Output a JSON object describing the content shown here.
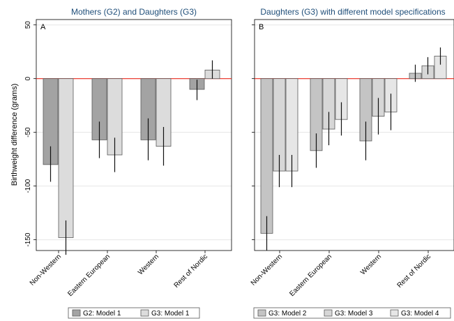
{
  "y_axis_label": "Birthweight difference (grams)",
  "chart_data": [
    {
      "type": "bar",
      "panel": "A",
      "title": "Mothers (G2) and Daughters (G3)",
      "categories": [
        "Non-Western",
        "Eastern European",
        "Western",
        "Rest of Nordic"
      ],
      "ylabel": "Birthweight difference (grams)",
      "ylim": [
        -160,
        55
      ],
      "yticks": [
        50,
        0,
        -50,
        -100,
        -150
      ],
      "reference_line": {
        "y": 0,
        "color": "#e8291c"
      },
      "grid": true,
      "legend_position": "bottom",
      "series": [
        {
          "name": "G2: Model 1",
          "color": "#a3a3a3",
          "values": [
            -80,
            -57,
            -57,
            -10
          ],
          "ci_low": [
            -96,
            -74,
            -76,
            -20
          ],
          "ci_high": [
            -63,
            -40,
            -37,
            -1
          ]
        },
        {
          "name": "G3: Model 1",
          "color": "#dcdcdc",
          "values": [
            -148,
            -71,
            -63,
            8
          ],
          "ci_low": [
            -164,
            -87,
            -81,
            0
          ],
          "ci_high": [
            -132,
            -55,
            -45,
            17
          ]
        }
      ]
    },
    {
      "type": "bar",
      "panel": "B",
      "title": "Daughters (G3) with different model specifications",
      "categories": [
        "Non-Western",
        "Eastern European",
        "Western",
        "Rest of Nordic"
      ],
      "ylim": [
        -160,
        55
      ],
      "yticks": [
        50,
        0,
        -50,
        -100,
        -150
      ],
      "reference_line": {
        "y": 0,
        "color": "#e8291c"
      },
      "grid": true,
      "legend_position": "bottom",
      "series": [
        {
          "name": "G3: Model 2",
          "color": "#c4c4c4",
          "values": [
            -144,
            -67,
            -58,
            5
          ],
          "ci_low": [
            -160,
            -83,
            -76,
            -3
          ],
          "ci_high": [
            -128,
            -51,
            -40,
            13
          ]
        },
        {
          "name": "G3: Model 3",
          "color": "#d7d7d7",
          "values": [
            -86,
            -47,
            -35,
            12
          ],
          "ci_low": [
            -101,
            -62,
            -52,
            4
          ],
          "ci_high": [
            -71,
            -31,
            -18,
            20
          ]
        },
        {
          "name": "G3: Model 4",
          "color": "#e6e6e6",
          "values": [
            -86,
            -38,
            -31,
            21
          ],
          "ci_low": [
            -101,
            -53,
            -48,
            13
          ],
          "ci_high": [
            -71,
            -22,
            -14,
            29
          ]
        }
      ]
    }
  ]
}
